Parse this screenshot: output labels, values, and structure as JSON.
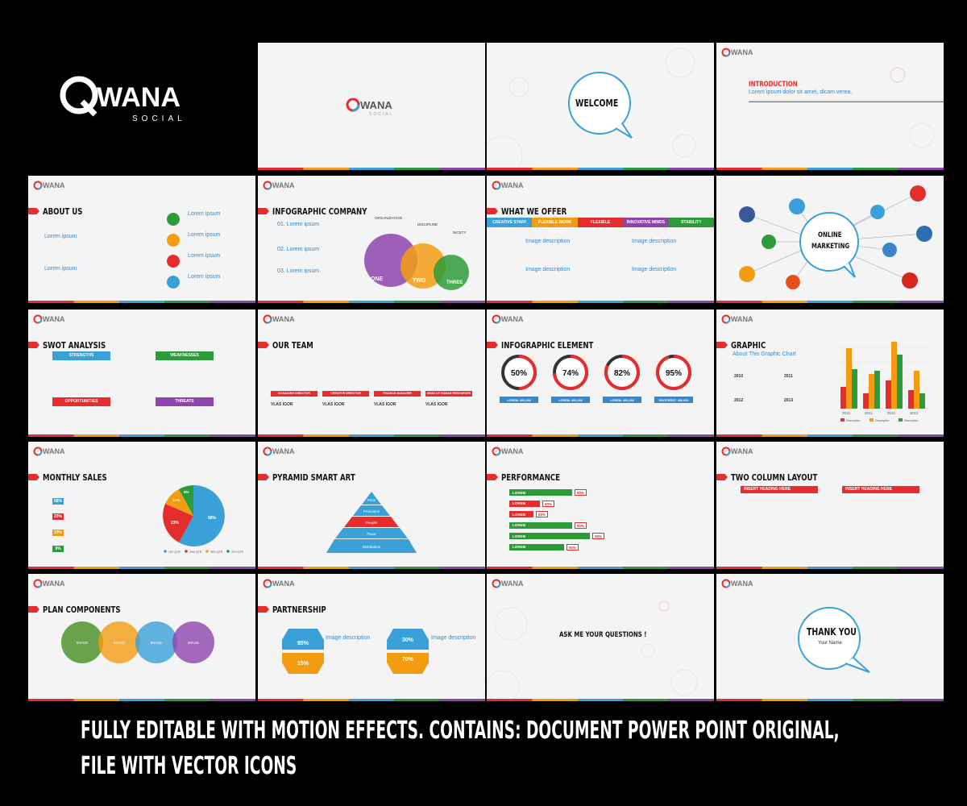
{
  "brand": {
    "name": "WANA",
    "tag": "SOCIAL"
  },
  "slides": {
    "welcome": "WELCOME",
    "intro": {
      "title": "INTRODUCTION",
      "sub": "Lorem ipsum dolor sit amet, dicam verea."
    },
    "about": {
      "title": "ABOUT US",
      "items": [
        "Lorem ipsum",
        "Lorem ipsum",
        "Lorem ipsum",
        "Lorem ipsum"
      ],
      "subs": [
        "Lorem ipsum",
        "Lorem ipsum"
      ]
    },
    "infographic_company": {
      "title": "INFOGRAPHIC COMPANY",
      "items": [
        "01. Lorem ipsum",
        "02. Lorem ipsum",
        "03. Lorem ipsum"
      ],
      "circle_tops": [
        "ORGANIZATION",
        "DISCIPLINE",
        "NICETY"
      ],
      "circle_labels": [
        "ONE",
        "TWO",
        "THREE"
      ]
    },
    "what_we_offer": {
      "title": "WHAT WE OFFER",
      "tabs": [
        "CREATIVE STAFF",
        "FLEXIBLE WORK HOURS",
        "FLEXIBLE",
        "INNOVATIVE MINDS",
        "STABILITY"
      ],
      "desc": "Image description"
    },
    "online_marketing": {
      "line1": "ONLINE",
      "line2": "MARKETING"
    },
    "swot": {
      "title": "SWOT ANALYSIS",
      "boxes": [
        "STRENGTHS",
        "WEAKNESSES",
        "OPPORTUNITIES",
        "THREATS"
      ]
    },
    "team": {
      "title": "OUR TEAM",
      "roles": [
        "MANAGING DIRECTOR",
        "CREATIVE DIRECTOR",
        "FINANCE MANAGER",
        "HEAD OF HUMAN RESOURCES"
      ],
      "name": "VLAS IGOR"
    },
    "infographic_element": {
      "title": "INFOGRAPHIC ELEMENT",
      "values": [
        "50%",
        "74%",
        "82%",
        "95%"
      ],
      "labels": [
        "LOREM: 400,000",
        "LOREM: 400,000",
        "LOREM: 400,000",
        "PINTEREST: 400,000"
      ]
    },
    "graphic": {
      "title": "GRAPHIC",
      "sub": "About This Graphic Chart",
      "years": [
        "2010",
        "2011",
        "2012",
        "2013"
      ],
      "legend": [
        "Description",
        "Description",
        "Description"
      ]
    },
    "monthly_sales": {
      "title": "MONTHLY SALES",
      "pcts": [
        "58%",
        "23%",
        "10%",
        "9%"
      ],
      "legend": [
        "1ST QTR",
        "2ND QTR",
        "3RD QTR",
        "4TH QTR"
      ]
    },
    "pyramid": {
      "title": "PYRAMID SMART ART",
      "levels": [
        "Price",
        "Promotion",
        "People",
        "Place",
        "Distribution"
      ]
    },
    "performance": {
      "title": "PERFORMANCE",
      "label": "LOREM",
      "values": [
        "80%",
        "50%",
        "60%",
        "80%",
        "95%",
        "90%"
      ]
    },
    "two_col": {
      "title": "TWO COLUMN LAYOUT",
      "heading": "INSERT HEADING HERE"
    },
    "plan": {
      "title": "PLAN COMPONENTS",
      "label": "IMAGE"
    },
    "partnership": {
      "title": "PARTNERSHIP",
      "values": [
        "85%",
        "15%",
        "30%",
        "70%"
      ],
      "desc": "Image description"
    },
    "questions": "ASK ME YOUR QUESTIONS !",
    "thanks": {
      "title": "THANK YOU",
      "name": "Your Name"
    }
  },
  "footer": {
    "line1": "FULLY EDITABLE WITH MOTION EFFECTS. CONTAINS: DOCUMENT POWER POINT ORIGINAL,",
    "line2": "FILE  WITH VECTOR ICONS"
  },
  "colors": {
    "red": "#e52d2d",
    "orange": "#f39c12",
    "blue": "#3aa0d8",
    "green": "#2e9b3a",
    "purple": "#8e44ad"
  }
}
